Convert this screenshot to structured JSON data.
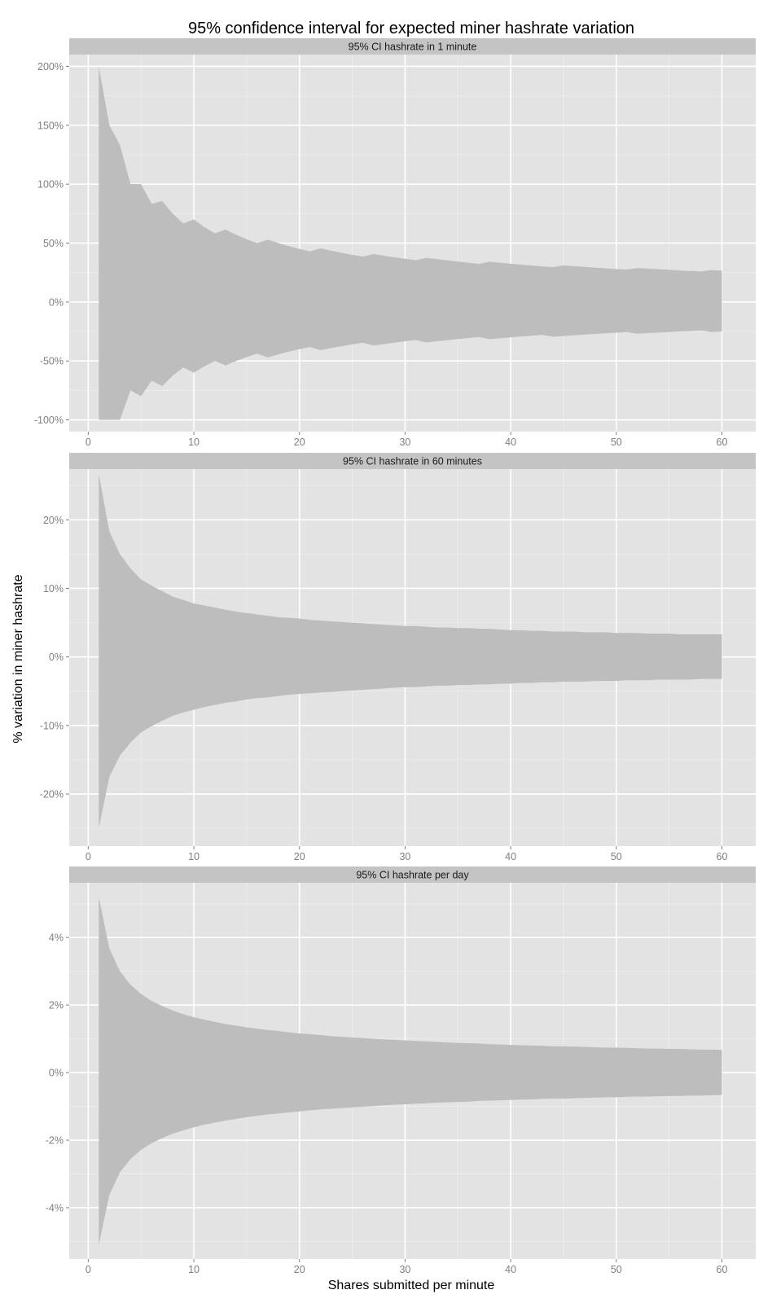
{
  "chart_data": {
    "type": "area",
    "title": "95% confidence interval for expected miner hashrate variation",
    "xlabel": "Shares submitted per minute",
    "ylabel": "% variation in miner hashrate",
    "grid": true,
    "legend": "none",
    "colors": {
      "panel_background": "#e3e3e3",
      "strip_background": "#c4c4c4",
      "grid_major": "#ffffff",
      "grid_minor": "#ececec",
      "ribbon": "#bdbdbd",
      "tick": "#7f7f7f"
    },
    "panels": [
      {
        "strip": "95% CI hashrate in 1 minute",
        "xlim": [
          -1.8,
          63.2
        ],
        "ylim": [
          -110,
          210
        ],
        "x_ticks": [
          0,
          10,
          20,
          30,
          40,
          50,
          60
        ],
        "x_tick_labels": [
          "0",
          "10",
          "20",
          "30",
          "40",
          "50",
          "60"
        ],
        "y_ticks": [
          -100,
          -50,
          0,
          50,
          100,
          150,
          200
        ],
        "y_tick_labels": [
          "-100%",
          "-50%",
          "0%",
          "50%",
          "100%",
          "150%",
          "200%"
        ],
        "x": [
          1,
          2,
          3,
          4,
          5,
          6,
          7,
          8,
          9,
          10,
          11,
          12,
          13,
          14,
          15,
          16,
          17,
          18,
          19,
          20,
          21,
          22,
          23,
          24,
          25,
          26,
          27,
          28,
          29,
          30,
          31,
          32,
          33,
          34,
          35,
          36,
          37,
          38,
          39,
          40,
          41,
          42,
          43,
          44,
          45,
          46,
          47,
          48,
          49,
          50,
          51,
          52,
          53,
          54,
          55,
          56,
          57,
          58,
          59,
          60
        ],
        "upper": [
          200,
          150,
          133.3,
          100,
          100,
          83.3,
          85.7,
          75,
          66.7,
          70,
          63.6,
          58.3,
          61.5,
          57.1,
          53.3,
          50,
          52.9,
          50,
          47.4,
          45,
          42.9,
          45.5,
          43.5,
          41.7,
          40,
          38.5,
          40.7,
          39.3,
          37.9,
          36.7,
          35.5,
          37.5,
          36.4,
          35.3,
          34.3,
          33.3,
          32.4,
          34.2,
          33.3,
          32.5,
          31.7,
          31,
          30.2,
          29.5,
          31.1,
          30.4,
          29.8,
          29.2,
          28.6,
          28,
          27.5,
          28.8,
          28.3,
          27.8,
          27.3,
          26.8,
          26.3,
          25.9,
          27.1,
          26.7
        ],
        "lower": [
          -100,
          -100,
          -100,
          -75,
          -80,
          -66.7,
          -71.4,
          -62.5,
          -55.6,
          -60,
          -54.5,
          -50,
          -53.8,
          -50,
          -46.7,
          -43.8,
          -47.1,
          -44.4,
          -42.1,
          -40,
          -38.1,
          -40.9,
          -39.1,
          -37.5,
          -36,
          -34.6,
          -37,
          -35.7,
          -34.5,
          -33.3,
          -32.3,
          -34.4,
          -33.3,
          -32.4,
          -31.4,
          -30.6,
          -29.7,
          -31.6,
          -30.8,
          -30,
          -29.3,
          -28.6,
          -27.9,
          -29.5,
          -28.9,
          -28.3,
          -27.7,
          -27.1,
          -26.5,
          -26,
          -25.5,
          -26.9,
          -26.4,
          -25.9,
          -25.5,
          -25,
          -24.6,
          -24.1,
          -25.4,
          -25
        ]
      },
      {
        "strip": "95% CI hashrate in 60 minutes",
        "xlim": [
          -1.8,
          63.2
        ],
        "ylim": [
          -27.6,
          27.4
        ],
        "x_ticks": [
          0,
          10,
          20,
          30,
          40,
          50,
          60
        ],
        "x_tick_labels": [
          "0",
          "10",
          "20",
          "30",
          "40",
          "50",
          "60"
        ],
        "y_ticks": [
          -20,
          -10,
          0,
          10,
          20
        ],
        "y_tick_labels": [
          "-20%",
          "-10%",
          "0%",
          "10%",
          "20%"
        ],
        "x": [
          1,
          2,
          3,
          4,
          5,
          6,
          7,
          8,
          9,
          10,
          11,
          12,
          13,
          14,
          15,
          16,
          17,
          18,
          19,
          20,
          21,
          22,
          23,
          24,
          25,
          26,
          27,
          28,
          29,
          30,
          31,
          32,
          33,
          34,
          35,
          36,
          37,
          38,
          39,
          40,
          41,
          42,
          43,
          44,
          45,
          46,
          47,
          48,
          49,
          50,
          51,
          52,
          53,
          54,
          55,
          56,
          57,
          58,
          59,
          60
        ],
        "upper": [
          26.7,
          18.3,
          15.0,
          12.9,
          11.3,
          10.4,
          9.6,
          8.8,
          8.3,
          7.8,
          7.5,
          7.2,
          6.9,
          6.6,
          6.4,
          6.2,
          6.0,
          5.8,
          5.7,
          5.6,
          5.4,
          5.3,
          5.2,
          5.1,
          5.0,
          4.9,
          4.8,
          4.7,
          4.6,
          4.5,
          4.5,
          4.4,
          4.3,
          4.3,
          4.2,
          4.2,
          4.1,
          4.1,
          4.0,
          3.9,
          3.9,
          3.8,
          3.8,
          3.7,
          3.7,
          3.7,
          3.6,
          3.6,
          3.6,
          3.5,
          3.5,
          3.5,
          3.4,
          3.4,
          3.4,
          3.3,
          3.3,
          3.3,
          3.3,
          3.3
        ],
        "lower": [
          -25.0,
          -17.5,
          -14.4,
          -12.5,
          -11.0,
          -10.1,
          -9.3,
          -8.6,
          -8.1,
          -7.7,
          -7.3,
          -7.0,
          -6.7,
          -6.5,
          -6.2,
          -6.0,
          -5.9,
          -5.7,
          -5.5,
          -5.4,
          -5.3,
          -5.2,
          -5.1,
          -5.0,
          -4.9,
          -4.8,
          -4.7,
          -4.6,
          -4.5,
          -4.4,
          -4.4,
          -4.3,
          -4.2,
          -4.2,
          -4.1,
          -4.1,
          -4.0,
          -4.0,
          -3.9,
          -3.9,
          -3.8,
          -3.8,
          -3.7,
          -3.7,
          -3.6,
          -3.6,
          -3.6,
          -3.5,
          -3.5,
          -3.5,
          -3.4,
          -3.4,
          -3.4,
          -3.3,
          -3.3,
          -3.3,
          -3.3,
          -3.2,
          -3.2,
          -3.2
        ]
      },
      {
        "strip": "95% CI hashrate per day",
        "xlim": [
          -1.8,
          63.2
        ],
        "ylim": [
          -5.52,
          5.62
        ],
        "x_ticks": [
          0,
          10,
          20,
          30,
          40,
          50,
          60
        ],
        "x_tick_labels": [
          "0",
          "10",
          "20",
          "30",
          "40",
          "50",
          "60"
        ],
        "y_ticks": [
          -4,
          -2,
          0,
          2,
          4
        ],
        "y_tick_labels": [
          "-4%",
          "-2%",
          "0%",
          "2%",
          "4%"
        ],
        "x": [
          1,
          2,
          3,
          4,
          5,
          6,
          7,
          8,
          9,
          10,
          11,
          12,
          13,
          14,
          15,
          16,
          17,
          18,
          19,
          20,
          21,
          22,
          23,
          24,
          25,
          26,
          27,
          28,
          29,
          30,
          31,
          32,
          33,
          34,
          35,
          36,
          37,
          38,
          39,
          40,
          41,
          42,
          43,
          44,
          45,
          46,
          47,
          48,
          49,
          50,
          51,
          52,
          53,
          54,
          55,
          56,
          57,
          58,
          59,
          60
        ],
        "upper": [
          5.2,
          3.68,
          3.0,
          2.6,
          2.33,
          2.12,
          1.97,
          1.84,
          1.73,
          1.64,
          1.57,
          1.5,
          1.44,
          1.39,
          1.34,
          1.3,
          1.26,
          1.23,
          1.19,
          1.16,
          1.14,
          1.11,
          1.08,
          1.06,
          1.04,
          1.02,
          1.0,
          0.98,
          0.97,
          0.95,
          0.94,
          0.92,
          0.91,
          0.89,
          0.88,
          0.87,
          0.86,
          0.84,
          0.83,
          0.82,
          0.81,
          0.8,
          0.79,
          0.78,
          0.78,
          0.77,
          0.76,
          0.75,
          0.74,
          0.74,
          0.73,
          0.72,
          0.71,
          0.71,
          0.7,
          0.7,
          0.69,
          0.68,
          0.68,
          0.67
        ],
        "lower": [
          -5.1,
          -3.62,
          -2.95,
          -2.56,
          -2.29,
          -2.09,
          -1.94,
          -1.81,
          -1.71,
          -1.62,
          -1.54,
          -1.48,
          -1.42,
          -1.37,
          -1.32,
          -1.28,
          -1.24,
          -1.21,
          -1.18,
          -1.15,
          -1.12,
          -1.09,
          -1.07,
          -1.05,
          -1.03,
          -1.01,
          -0.99,
          -0.97,
          -0.95,
          -0.94,
          -0.92,
          -0.91,
          -0.89,
          -0.88,
          -0.87,
          -0.86,
          -0.84,
          -0.83,
          -0.82,
          -0.81,
          -0.8,
          -0.79,
          -0.78,
          -0.77,
          -0.77,
          -0.76,
          -0.75,
          -0.74,
          -0.73,
          -0.73,
          -0.72,
          -0.71,
          -0.71,
          -0.7,
          -0.69,
          -0.69,
          -0.68,
          -0.68,
          -0.67,
          -0.66
        ]
      }
    ]
  }
}
